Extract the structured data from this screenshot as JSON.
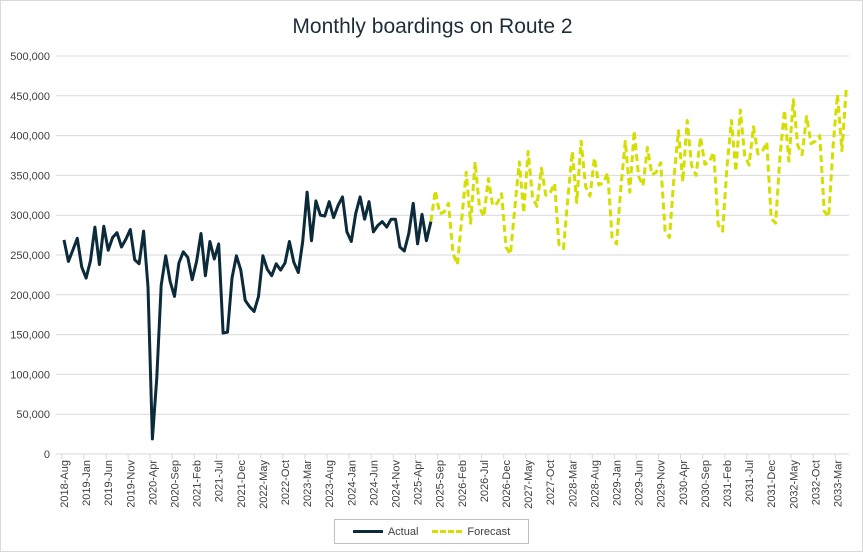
{
  "chart_data": {
    "type": "line",
    "title": "Monthly boardings on Route 2",
    "xlabel": "",
    "ylabel": "",
    "ylim": [
      0,
      500000
    ],
    "y_ticks": [
      0,
      50000,
      100000,
      150000,
      200000,
      250000,
      300000,
      350000,
      400000,
      450000,
      500000
    ],
    "y_tick_labels": [
      "0",
      "50,000",
      "100,000",
      "150,000",
      "200,000",
      "250,000",
      "300,000",
      "350,000",
      "400,000",
      "450,000",
      "500,000"
    ],
    "x_start": "2018-Aug",
    "x_tick_every_months": 5,
    "x_tick_labels": [
      "2018-Aug",
      "2019-Jan",
      "2019-Jun",
      "2019-Nov",
      "2020-Apr",
      "2020-Sep",
      "2021-Feb",
      "2021-Jul",
      "2021-Dec",
      "2022-May",
      "2022-Oct",
      "2023-Mar",
      "2023-Aug",
      "2024-Jan",
      "2024-Jun",
      "2024-Nov",
      "2025-Apr",
      "2025-Sep",
      "2026-Feb",
      "2026-Jul",
      "2026-Dec",
      "2027-May",
      "2027-Oct",
      "2028-Mar",
      "2028-Aug",
      "2029-Jan",
      "2029-Jun",
      "2029-Nov",
      "2030-Apr",
      "2030-Sep",
      "2031-Feb",
      "2031-Jul",
      "2031-Dec",
      "2032-May",
      "2032-Oct",
      "2033-Mar"
    ],
    "grid": true,
    "legend_position": "bottom",
    "series": [
      {
        "name": "Actual",
        "color": "#0b2a3a",
        "style": "solid",
        "start_index": 0,
        "values": [
          269000,
          242000,
          256000,
          271000,
          235000,
          221000,
          243000,
          285000,
          238000,
          286000,
          256000,
          272000,
          278000,
          260000,
          270000,
          282000,
          244000,
          239000,
          280000,
          210000,
          19000,
          96000,
          212000,
          249000,
          217000,
          198000,
          240000,
          254000,
          247000,
          219000,
          242000,
          277000,
          224000,
          267000,
          245000,
          264000,
          152000,
          153000,
          221000,
          249000,
          231000,
          193000,
          185000,
          179000,
          198000,
          249000,
          232000,
          224000,
          239000,
          231000,
          240000,
          267000,
          241000,
          228000,
          267000,
          329000,
          268000,
          318000,
          300000,
          299000,
          317000,
          297000,
          312000,
          323000,
          279000,
          267000,
          302000,
          323000,
          295000,
          317000,
          279000,
          287000,
          292000,
          285000,
          295000,
          295000,
          260000,
          255000,
          277000,
          315000,
          264000,
          301000,
          268000,
          292000
        ]
      },
      {
        "name": "Forecast",
        "color": "#d4de00",
        "style": "dashed",
        "start_index": 83,
        "values": [
          292000,
          331000,
          302000,
          304000,
          315000,
          252000,
          238000,
          296000,
          354000,
          290000,
          367000,
          310000,
          298000,
          346000,
          312000,
          315000,
          327000,
          260000,
          251000,
          309000,
          367000,
          303000,
          380000,
          323000,
          311000,
          359000,
          325000,
          328000,
          340000,
          263000,
          258000,
          322000,
          380000,
          316000,
          393000,
          336000,
          324000,
          372000,
          338000,
          341000,
          353000,
          272000,
          264000,
          335000,
          393000,
          329000,
          406000,
          349000,
          337000,
          385000,
          351000,
          354000,
          366000,
          280000,
          272000,
          348000,
          406000,
          342000,
          419000,
          362000,
          350000,
          398000,
          364000,
          367000,
          379000,
          288000,
          280000,
          361000,
          419000,
          355000,
          432000,
          375000,
          363000,
          411000,
          377000,
          380000,
          392000,
          296000,
          290000,
          374000,
          432000,
          368000,
          445000,
          388000,
          376000,
          424000,
          390000,
          393000,
          400000,
          305000,
          298000,
          387000,
          452000,
          381000,
          460000
        ]
      }
    ]
  }
}
